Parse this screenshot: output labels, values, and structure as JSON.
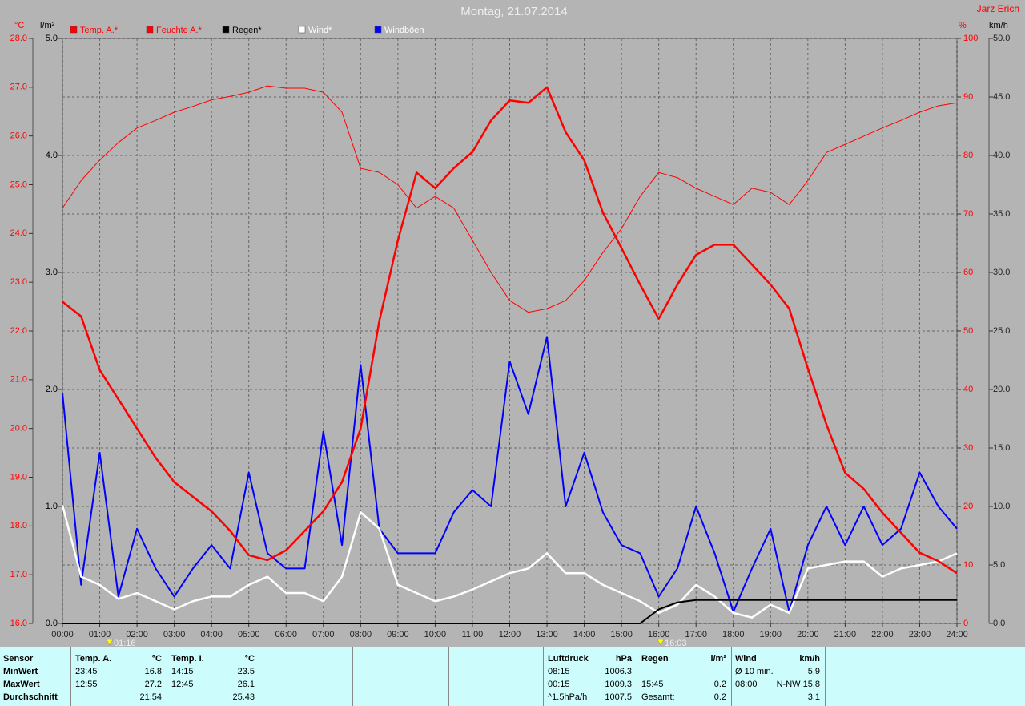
{
  "chart_data": {
    "type": "line",
    "title": "Montag, 21.07.2014",
    "author": "Jarz Erich",
    "y_label": "°C",
    "y3_label": "l/m²",
    "y2_label": "%",
    "y4_label": "km/h",
    "x": [
      0,
      0.5,
      1,
      1.5,
      2,
      2.5,
      3,
      3.5,
      4,
      4.5,
      5,
      5.5,
      6,
      6.5,
      7,
      7.5,
      8,
      8.5,
      9,
      9.5,
      10,
      10.5,
      11,
      11.5,
      12,
      12.5,
      13,
      13.5,
      14,
      14.5,
      15,
      15.5,
      16,
      16.5,
      17,
      17.5,
      18,
      18.5,
      19,
      19.5,
      20,
      20.5,
      21,
      21.5,
      22,
      22.5,
      23,
      23.5,
      24
    ],
    "xlim": [
      0,
      24
    ],
    "xticks": [
      {
        "value": 0,
        "label": "00:00"
      },
      {
        "value": 1,
        "label": "01:00"
      },
      {
        "value": 2,
        "label": "02:00"
      },
      {
        "value": 3,
        "label": "03:00"
      },
      {
        "value": 4,
        "label": "04:00"
      },
      {
        "value": 5,
        "label": "05:00"
      },
      {
        "value": 6,
        "label": "06:00"
      },
      {
        "value": 7,
        "label": "07:00"
      },
      {
        "value": 8,
        "label": "08:00"
      },
      {
        "value": 9,
        "label": "09:00"
      },
      {
        "value": 10,
        "label": "10:00"
      },
      {
        "value": 11,
        "label": "11:00"
      },
      {
        "value": 12,
        "label": "12:00"
      },
      {
        "value": 13,
        "label": "13:00"
      },
      {
        "value": 14,
        "label": "14:00"
      },
      {
        "value": 15,
        "label": "15:00"
      },
      {
        "value": 16,
        "label": "16:00"
      },
      {
        "value": 17,
        "label": "17:00"
      },
      {
        "value": 18,
        "label": "18:00"
      },
      {
        "value": 19,
        "label": "19:00"
      },
      {
        "value": 20,
        "label": "20:00"
      },
      {
        "value": 21,
        "label": "21:00"
      },
      {
        "value": 22,
        "label": "22:00"
      },
      {
        "value": 23,
        "label": "23:00"
      },
      {
        "value": 24,
        "label": "24:00"
      }
    ],
    "ylim": [
      16,
      28
    ],
    "yticks": [
      {
        "value": 16,
        "label": "16.0"
      },
      {
        "value": 17,
        "label": "17.0"
      },
      {
        "value": 18,
        "label": "18.0"
      },
      {
        "value": 19,
        "label": "19.0"
      },
      {
        "value": 20,
        "label": "20.0"
      },
      {
        "value": 21,
        "label": "21.0"
      },
      {
        "value": 22,
        "label": "22.0"
      },
      {
        "value": 23,
        "label": "23.0"
      },
      {
        "value": 24,
        "label": "24.0"
      },
      {
        "value": 25,
        "label": "25.0"
      },
      {
        "value": 26,
        "label": "26.0"
      },
      {
        "value": 27,
        "label": "27.0"
      },
      {
        "value": 28,
        "label": "28.0"
      }
    ],
    "y3lim": [
      0,
      5
    ],
    "y3ticks": [
      {
        "value": 0,
        "label": "0.0"
      },
      {
        "value": 1,
        "label": "1.0"
      },
      {
        "value": 2,
        "label": "2.0"
      },
      {
        "value": 3,
        "label": "3.0"
      },
      {
        "value": 4,
        "label": "4.0"
      },
      {
        "value": 5,
        "label": "5.0"
      }
    ],
    "y2lim": [
      0,
      100
    ],
    "y2ticks": [
      0,
      10,
      20,
      30,
      40,
      50,
      60,
      70,
      80,
      90,
      100
    ],
    "y4lim": [
      0,
      50
    ],
    "y4ticks": [
      {
        "value": 0,
        "label": "0.0"
      },
      {
        "value": 5,
        "label": "5.0"
      },
      {
        "value": 10,
        "label": "10.0"
      },
      {
        "value": 15,
        "label": "15.0"
      },
      {
        "value": 20,
        "label": "20.0"
      },
      {
        "value": 25,
        "label": "25.0"
      },
      {
        "value": 30,
        "label": "30.0"
      },
      {
        "value": 35,
        "label": "35.0"
      },
      {
        "value": 40,
        "label": "40.0"
      },
      {
        "value": 45,
        "label": "45.0"
      },
      {
        "value": 50,
        "label": "50.0"
      }
    ],
    "grid": true,
    "series": [
      {
        "name": "Temp. A.*",
        "color": "#ff0000",
        "axis": "y",
        "width": 2.5,
        "values": [
          22.6,
          22.3,
          21.2,
          20.6,
          20.0,
          19.4,
          18.9,
          18.6,
          18.3,
          17.9,
          17.4,
          17.3,
          17.5,
          17.9,
          18.3,
          18.9,
          20.0,
          22.2,
          23.86,
          25.25,
          24.93,
          25.34,
          25.67,
          26.32,
          26.73,
          26.68,
          27.0,
          26.08,
          25.5,
          24.43,
          23.7,
          22.95,
          22.25,
          22.95,
          23.56,
          23.77,
          23.77,
          23.36,
          22.95,
          22.46,
          21.23,
          20.08,
          19.09,
          18.76,
          18.27,
          17.86,
          17.45,
          17.28,
          17.03
        ]
      },
      {
        "name": "Feuchte A.*",
        "color": "#ff0000",
        "axis": "y2",
        "width": 1,
        "values": [
          71,
          75.7,
          79.2,
          82.2,
          84.7,
          86,
          87.4,
          88.4,
          89.5,
          90.1,
          90.8,
          91.9,
          91.5,
          91.5,
          90.8,
          87.4,
          77.8,
          77.1,
          75,
          71,
          73,
          71,
          65.5,
          60,
          55.2,
          53.2,
          53.8,
          55.2,
          58.6,
          63.4,
          67.5,
          73,
          77.1,
          76.2,
          74.4,
          73,
          71.6,
          74.4,
          73.7,
          71.6,
          75.7,
          80.5,
          81.9,
          83.3,
          84.7,
          86,
          87.4,
          88.5,
          89
        ]
      },
      {
        "name": "Regen*",
        "color": "#000000",
        "axis": "y3",
        "width": 2,
        "values": [
          0,
          0,
          0,
          0,
          0,
          0,
          0,
          0,
          0,
          0,
          0,
          0,
          0,
          0,
          0,
          0,
          0,
          0,
          0,
          0,
          0,
          0,
          0,
          0,
          0,
          0,
          0,
          0,
          0,
          0,
          0,
          0,
          0.12,
          0.18,
          0.2,
          0.2,
          0.2,
          0.2,
          0.2,
          0.2,
          0.2,
          0.2,
          0.2,
          0.2,
          0.2,
          0.2,
          0.2,
          0.2,
          0.2
        ]
      },
      {
        "name": "Wind*",
        "color": "#ffffff",
        "axis": "y4",
        "width": 2.5,
        "values": [
          10.1,
          4.0,
          3.3,
          2.1,
          2.6,
          1.9,
          1.2,
          1.9,
          2.3,
          2.3,
          3.3,
          4.0,
          2.6,
          2.6,
          1.9,
          4.0,
          9.5,
          8.1,
          3.3,
          2.6,
          1.9,
          2.3,
          2.9,
          3.6,
          4.3,
          4.7,
          6.0,
          4.3,
          4.3,
          3.3,
          2.6,
          1.9,
          0.9,
          1.6,
          3.3,
          2.3,
          0.9,
          0.5,
          1.6,
          0.9,
          4.7,
          5.0,
          5.3,
          5.3,
          4.0,
          4.7,
          5.0,
          5.3,
          6.0
        ]
      },
      {
        "name": "Windböen",
        "color": "#0000ff",
        "axis": "y4",
        "width": 2,
        "values": [
          19.7,
          3.3,
          14.6,
          2.3,
          8.1,
          4.7,
          2.3,
          4.7,
          6.7,
          4.7,
          12.9,
          6.0,
          4.7,
          4.7,
          16.4,
          6.7,
          22.1,
          8.1,
          6.0,
          6.0,
          6.0,
          9.5,
          11.4,
          10.0,
          22.4,
          17.9,
          24.5,
          10.0,
          14.6,
          9.5,
          6.7,
          6.0,
          2.3,
          4.7,
          10.0,
          6.0,
          1.0,
          4.7,
          8.1,
          1.0,
          6.7,
          10.0,
          6.7,
          10.0,
          6.7,
          8.1,
          12.9,
          10.0,
          8.1
        ]
      }
    ],
    "annotations": [
      {
        "x": 1.2667,
        "label": "01:16"
      },
      {
        "x": 16.05,
        "label": "16:03"
      }
    ]
  },
  "table": {
    "panels": [
      {
        "rows": [
          {
            "left": "Sensor"
          },
          {
            "left": "MinWert"
          },
          {
            "left": "MaxWert"
          },
          {
            "left": "Durchschnitt"
          }
        ]
      },
      {
        "rows": [
          {
            "left": "Temp. A.",
            "right": "°C"
          },
          {
            "left": "23:45",
            "right": "16.8"
          },
          {
            "left": "12:55",
            "right": "27.2"
          },
          {
            "right": "21.54"
          }
        ]
      },
      {
        "rows": [
          {
            "left": "Temp. I.",
            "right": "°C"
          },
          {
            "left": "14:15",
            "right": "23.5"
          },
          {
            "left": "12:45",
            "right": "26.1"
          },
          {
            "right": "25.43"
          }
        ]
      },
      {
        "rows": [
          {
            "left": "Luftdruck",
            "right": "hPa"
          },
          {
            "left": "08:15",
            "right": "1006.3"
          },
          {
            "left": "00:15",
            "right": "1009.3"
          },
          {
            "left": "^1.5hPa/h",
            "right": "1007.5"
          }
        ]
      },
      {
        "rows": [
          {
            "left": "Regen",
            "right": "l/m²"
          },
          null,
          {
            "left": "15:45",
            "right": "0.2"
          },
          {
            "left": "Gesamt:",
            "right": "0.2"
          }
        ]
      },
      {
        "rows": [
          {
            "left": "Wind",
            "right": "km/h"
          },
          {
            "left": "Ø 10 min.",
            "right": "5.9"
          },
          {
            "left": "08:00",
            "right": "N-NW 15.8"
          },
          {
            "right": "3.1"
          }
        ]
      }
    ]
  }
}
